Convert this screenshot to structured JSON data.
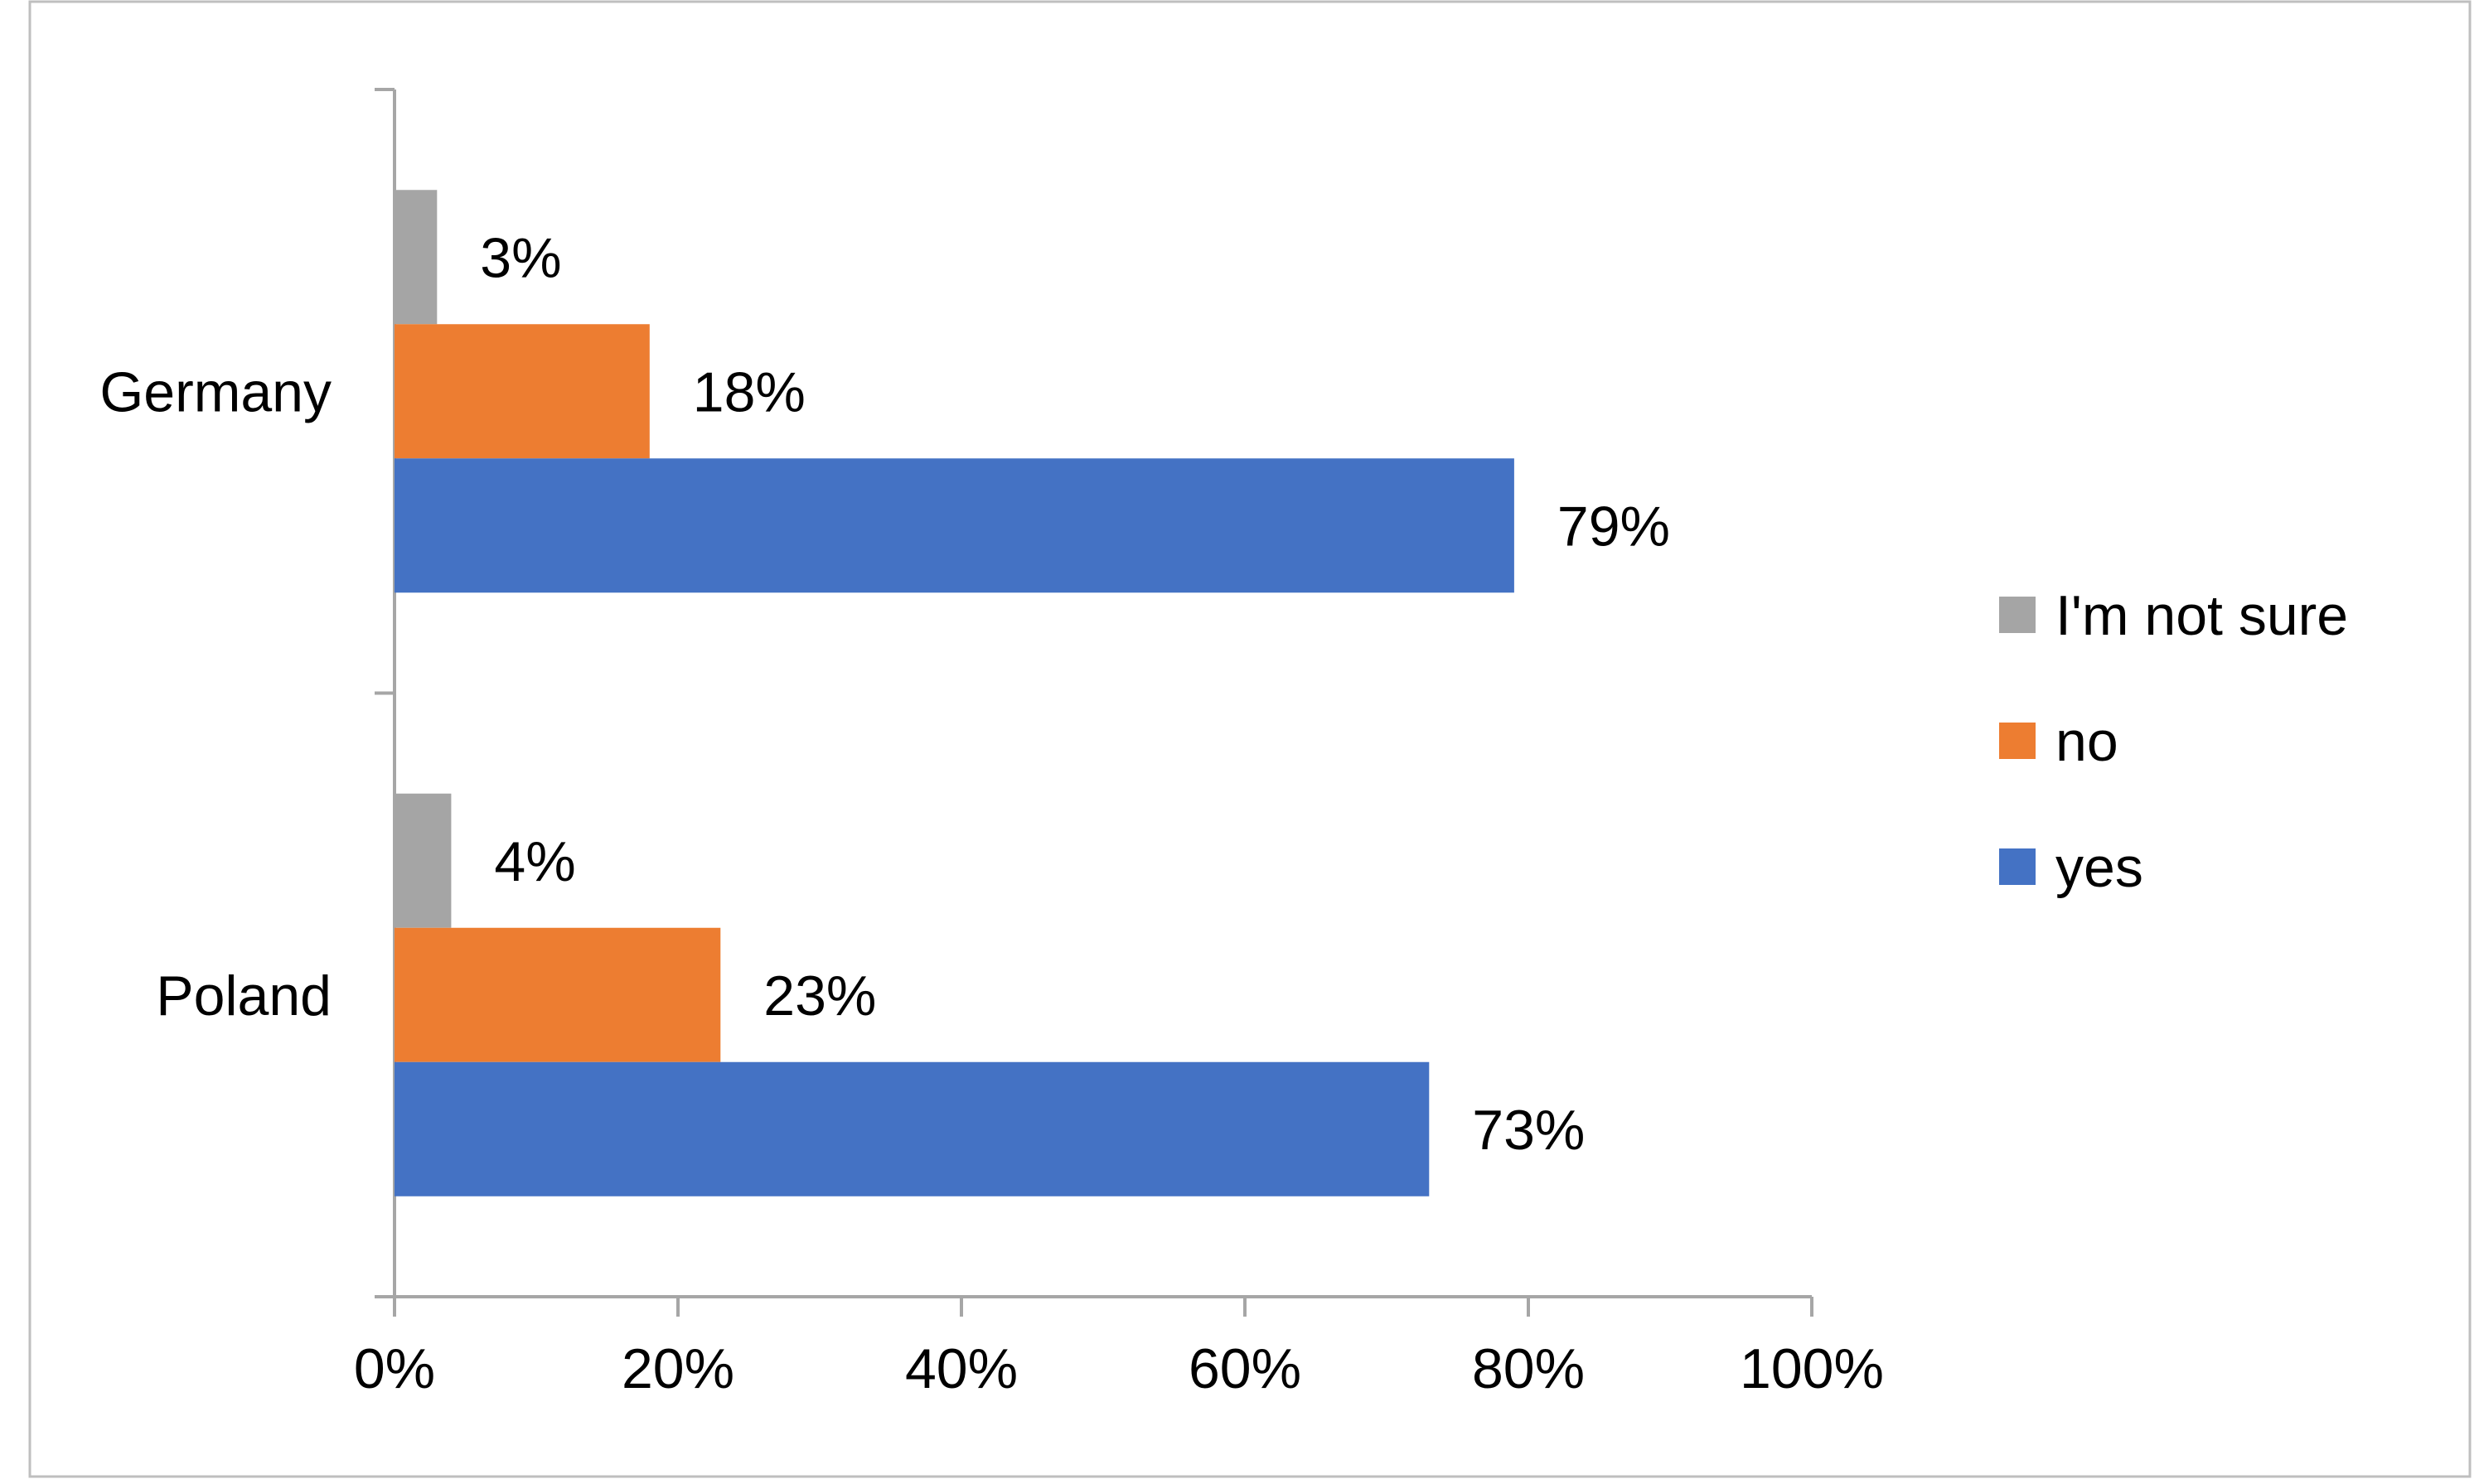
{
  "chart_data": {
    "type": "bar",
    "orientation": "horizontal",
    "categories": [
      "Germany",
      "Poland"
    ],
    "series": [
      {
        "name": "I'm not sure",
        "color": "#A5A5A5",
        "values": [
          3,
          4
        ],
        "labels": [
          "3%",
          "4%"
        ]
      },
      {
        "name": "no",
        "color": "#ED7D31",
        "values": [
          18,
          23
        ],
        "labels": [
          "18%",
          "23%"
        ]
      },
      {
        "name": "yes",
        "color": "#4472C4",
        "values": [
          79,
          73
        ],
        "labels": [
          "79%",
          "73%"
        ]
      }
    ],
    "xlim": [
      0,
      100
    ],
    "xticks": [
      0,
      20,
      40,
      60,
      80,
      100
    ],
    "xtick_labels": [
      "0%",
      "20%",
      "40%",
      "60%",
      "80%",
      "100%"
    ],
    "title": "",
    "xlabel": "",
    "ylabel": "",
    "grid": false,
    "legend_position": "right"
  }
}
